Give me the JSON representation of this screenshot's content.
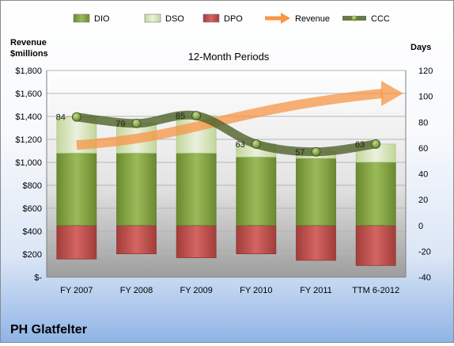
{
  "chart_data": {
    "type": "bar",
    "title": "12-Month Periods",
    "company": "PH Glatfelter",
    "y_left_label": [
      "Revenue",
      "$millions"
    ],
    "y_right_label": "Days",
    "categories": [
      "FY 2007",
      "FY 2008",
      "FY 2009",
      "FY 2010",
      "FY 2011",
      "TTM 6-2012"
    ],
    "left_axis": {
      "min": 0,
      "max": 1800,
      "step": 200,
      "ticks": [
        "$-",
        "$200",
        "$400",
        "$600",
        "$800",
        "$1,000",
        "$1,200",
        "$1,400",
        "$1,600",
        "$1,800"
      ]
    },
    "right_axis": {
      "min": -40,
      "max": 120,
      "step": 20,
      "ticks": [
        "-40",
        "-20",
        "0",
        "20",
        "40",
        "60",
        "80",
        "100",
        "120"
      ]
    },
    "legend": {
      "position": "top",
      "items": [
        {
          "name": "DIO",
          "kind": "bar",
          "color": "#76933c"
        },
        {
          "name": "DSO",
          "kind": "bar",
          "color": "#d7e4bd"
        },
        {
          "name": "DPO",
          "kind": "bar",
          "color": "#c0504d"
        },
        {
          "name": "Revenue",
          "kind": "arrow",
          "color": "#f79646"
        },
        {
          "name": "CCC",
          "kind": "line",
          "color": "#4f6228"
        }
      ]
    },
    "series": [
      {
        "name": "DPO",
        "axis": "right",
        "values": [
          -26,
          -22,
          -25,
          -22,
          -27,
          -31
        ]
      },
      {
        "name": "DIO",
        "axis": "right",
        "values": [
          56,
          56,
          56,
          53,
          52,
          49
        ]
      },
      {
        "name": "DSO",
        "axis": "right",
        "values": [
          28,
          23,
          29,
          10,
          5,
          14
        ]
      },
      {
        "name": "CCC",
        "axis": "right",
        "values": [
          84,
          79,
          85,
          63,
          57,
          63
        ]
      }
    ],
    "revenue_trend": {
      "name": "Revenue",
      "from": [
        0,
        1150
      ],
      "to": [
        5.3,
        1600
      ]
    }
  }
}
